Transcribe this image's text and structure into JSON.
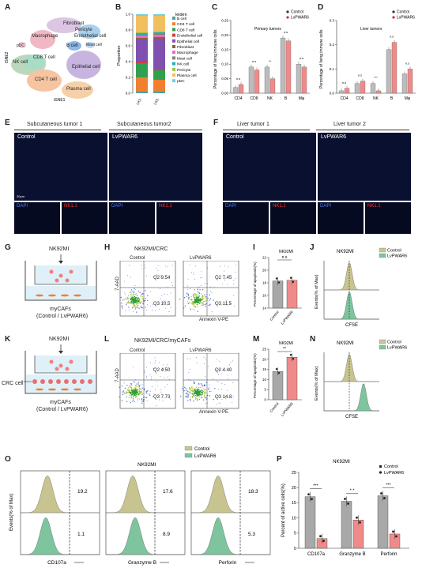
{
  "panels": {
    "A": {
      "letter": "A",
      "xlabel": "tSNE1",
      "ylabel": "tSNE2",
      "clusters": [
        {
          "name": "Fibroblast",
          "color": "#c9b0d8"
        },
        {
          "name": "Pericyte",
          "color": "#d8c8e0"
        },
        {
          "name": "Endothelial cell",
          "color": "#8dc8e8"
        },
        {
          "name": "Macrophage",
          "color": "#e8a0b0"
        },
        {
          "name": "B cell",
          "color": "#7fb0e0"
        },
        {
          "name": "Mast cell",
          "color": "#b0d0f0"
        },
        {
          "name": "pDC",
          "color": "#f0c8d0"
        },
        {
          "name": "NK cell",
          "color": "#a0c8a0"
        },
        {
          "name": "CD8 T cell",
          "color": "#90d0b0"
        },
        {
          "name": "Epithelial cell",
          "color": "#b8a0d8"
        },
        {
          "name": "CD4 T cell",
          "color": "#f0b080"
        },
        {
          "name": "Plasma cell",
          "color": "#f0c090"
        }
      ]
    },
    "B": {
      "letter": "B",
      "ylabel": "Proportion",
      "legend_title": "leiden",
      "yticks": [
        "0.0",
        "0.2",
        "0.4",
        "0.6",
        "0.8",
        "1.0"
      ],
      "xticks": [
        "LK3",
        "LK5"
      ],
      "legend": [
        {
          "name": "B cell",
          "color": "#4fa0a0"
        },
        {
          "name": "CD4 T cell",
          "color": "#f08030"
        },
        {
          "name": "CD8 T cell",
          "color": "#30a050"
        },
        {
          "name": "Endothelial cell",
          "color": "#d04040"
        },
        {
          "name": "Epithelial cell",
          "color": "#8050b0"
        },
        {
          "name": "Fibroblast",
          "color": "#906040"
        },
        {
          "name": "Macrophage",
          "color": "#e070c0"
        },
        {
          "name": "Mast cell",
          "color": "#808080"
        },
        {
          "name": "NK cell",
          "color": "#20b0c0"
        },
        {
          "name": "Pericyte",
          "color": "#a0c040"
        },
        {
          "name": "Plasma cell",
          "color": "#f0c060"
        },
        {
          "name": "pDC",
          "color": "#70d0e0"
        }
      ]
    },
    "C": {
      "letter": "C",
      "title": "Primary tumors",
      "ylabel": "Percentage of living immune cells",
      "categories": [
        "CD4",
        "CD8",
        "NK",
        "B",
        "Mφ"
      ],
      "legend": [
        "Control",
        "LvPWAR6"
      ],
      "yticks": [
        "0.00",
        "0.05",
        "0.10",
        "0.15",
        "0.20",
        "0.25"
      ],
      "sig": [
        "n.s",
        "n.s",
        "**",
        "n.s",
        "n.s"
      ]
    },
    "D": {
      "letter": "D",
      "title": "Liver tumors",
      "ylabel": "Percentage of living immune cells",
      "categories": [
        "CD4",
        "CD8",
        "NK",
        "B",
        "Mφ"
      ],
      "legend": [
        "Control",
        "LvPWAR6"
      ],
      "yticks": [
        "0.0",
        "0.1",
        "0.2",
        "0.3"
      ],
      "sig": [
        "n.s",
        "n.s",
        "***",
        "n.s",
        "n.s"
      ]
    },
    "E": {
      "letter": "E",
      "titles": [
        "Subcutaneous tumor 1",
        "Subcutaneous tumor2"
      ],
      "labels": [
        "Control",
        "LvPWAR6"
      ],
      "channels": [
        "DAPI",
        "NK1.1"
      ],
      "scale": "20μm"
    },
    "F": {
      "letter": "F",
      "titles": [
        "Liver tumor  1",
        "Liver tumor  2"
      ],
      "labels": [
        "Control",
        "LvPWAR6"
      ],
      "channels": [
        "DAPI",
        "NK1.1"
      ]
    },
    "G": {
      "letter": "G",
      "top": "NK92MI",
      "bottom": "myCAFs",
      "bottom2": "(Control / LvPWAR6)"
    },
    "H": {
      "letter": "H",
      "title": "NK92MI/CRC",
      "groups": [
        "Control",
        "LvPWAR6"
      ],
      "ylabel": "7-AAD",
      "xlabel": "Annexin V-PE",
      "q2": [
        "Q2 9.54",
        "Q2 7.45"
      ],
      "q3": [
        "Q3 10.5",
        "Q3 11.5"
      ]
    },
    "I": {
      "letter": "I",
      "title": "NK92MI",
      "ylabel": "Percentage of apoptosis(%)",
      "yticks": [
        "14",
        "16",
        "18",
        "20",
        "22"
      ],
      "xticks": [
        "Control",
        "LvPWAR6"
      ],
      "sig": "n.s"
    },
    "J": {
      "letter": "J",
      "title": "NK92MI",
      "ylabel": "Events(% of Max)",
      "xlabel": "CFSE",
      "legend": [
        "Control",
        "LvPWAR6"
      ]
    },
    "K": {
      "letter": "K",
      "top": "NK92MI",
      "side": "CRC cell",
      "bottom": "myCAFs",
      "bottom2": "(Control / LvPWAR6)"
    },
    "L": {
      "letter": "L",
      "title": "NK92MI/CRC/myCAFs",
      "groups": [
        "Control",
        "LvPWAR6"
      ],
      "ylabel": "7-AAD",
      "xlabel": "Annexin V-PE",
      "q2": [
        "Q2 4.50",
        "Q2 4.40"
      ],
      "q3": [
        "Q3 7.73",
        "Q3 14.8"
      ]
    },
    "M": {
      "letter": "M",
      "title": "NK92MI",
      "ylabel": "Percentage of apoptosis(%)",
      "yticks": [
        "0",
        "5",
        "10",
        "15",
        "20",
        "25"
      ],
      "xticks": [
        "Control",
        "LvPWAR6"
      ],
      "sig": "**"
    },
    "N": {
      "letter": "N",
      "title": "NK92MI",
      "ylabel": "Events(% of Max)",
      "xlabel": "CFSE",
      "legend": [
        "Control",
        "LvPWAR6"
      ]
    },
    "O": {
      "letter": "O",
      "title": "NK92MI",
      "ylabel": "Events(% of Max)",
      "legend": [
        "Control",
        "LvPWAR6"
      ],
      "markers": [
        "CD107a",
        "Granzyme B",
        "Perforin"
      ],
      "control_vals": [
        "19.2",
        "17.6",
        "18.3"
      ],
      "pwar_vals": [
        "1.1",
        "8.9",
        "5.3"
      ]
    },
    "P": {
      "letter": "P",
      "title": "NK92MI",
      "ylabel": "Percent of active cells(%)",
      "legend": [
        "Control",
        "LvPWAR6"
      ],
      "yticks": [
        "0",
        "5",
        "10",
        "15",
        "20",
        "25"
      ],
      "categories": [
        "CD107a",
        "Granzyme B",
        "Perforin"
      ],
      "sig": [
        "***",
        "* *",
        "***"
      ]
    }
  },
  "chart_data": [
    {
      "type": "bar",
      "panel": "B",
      "categories": [
        "LK3",
        "LK5"
      ],
      "series": [
        {
          "name": "B cell",
          "values": [
            0.02,
            0.02
          ]
        },
        {
          "name": "CD4 T cell",
          "values": [
            0.18,
            0.15
          ]
        },
        {
          "name": "CD8 T cell",
          "values": [
            0.18,
            0.12
          ]
        },
        {
          "name": "Endothelial cell",
          "values": [
            0.02,
            0.02
          ]
        },
        {
          "name": "Epithelial cell",
          "values": [
            0.28,
            0.38
          ]
        },
        {
          "name": "Fibroblast",
          "values": [
            0.02,
            0.02
          ]
        },
        {
          "name": "Macrophage",
          "values": [
            0.03,
            0.03
          ]
        },
        {
          "name": "Mast cell",
          "values": [
            0.01,
            0.01
          ]
        },
        {
          "name": "NK cell",
          "values": [
            0.02,
            0.02
          ]
        },
        {
          "name": "Pericyte",
          "values": [
            0.01,
            0.01
          ]
        },
        {
          "name": "Plasma cell",
          "values": [
            0.21,
            0.2
          ]
        },
        {
          "name": "pDC",
          "values": [
            0.02,
            0.02
          ]
        }
      ],
      "ylim": [
        0,
        1
      ]
    },
    {
      "type": "bar",
      "panel": "C",
      "categories": [
        "CD4",
        "CD8",
        "NK",
        "B",
        "Mφ"
      ],
      "series": [
        {
          "name": "Control",
          "values": [
            0.02,
            0.09,
            0.09,
            0.19,
            0.1
          ]
        },
        {
          "name": "LvPWAR6",
          "values": [
            0.03,
            0.08,
            0.05,
            0.18,
            0.09
          ]
        }
      ],
      "ylim": [
        0,
        0.25
      ]
    },
    {
      "type": "bar",
      "panel": "D",
      "categories": [
        "CD4",
        "CD8",
        "NK",
        "B",
        "Mφ"
      ],
      "series": [
        {
          "name": "Control",
          "values": [
            0.01,
            0.04,
            0.04,
            0.18,
            0.08
          ]
        },
        {
          "name": "LvPWAR6",
          "values": [
            0.02,
            0.05,
            0.01,
            0.21,
            0.1
          ]
        }
      ],
      "ylim": [
        0,
        0.3
      ]
    },
    {
      "type": "bar",
      "panel": "I",
      "categories": [
        "Control",
        "LvPWAR6"
      ],
      "values": [
        18.3,
        18.4
      ],
      "ylim": [
        14,
        22
      ]
    },
    {
      "type": "bar",
      "panel": "M",
      "categories": [
        "Control",
        "LvPWAR6"
      ],
      "values": [
        14.0,
        21.0
      ],
      "ylim": [
        0,
        25
      ]
    },
    {
      "type": "bar",
      "panel": "P",
      "categories": [
        "CD107a",
        "Granzyme B",
        "Perforin"
      ],
      "series": [
        {
          "name": "Control",
          "values": [
            17.0,
            15.5,
            17.3
          ]
        },
        {
          "name": "LvPWAR6",
          "values": [
            3.2,
            9.3,
            4.7
          ]
        }
      ],
      "ylim": [
        0,
        25
      ]
    }
  ]
}
